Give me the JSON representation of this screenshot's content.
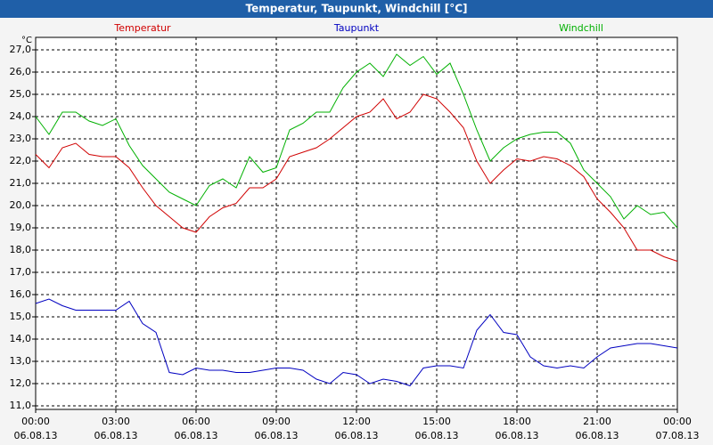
{
  "chart_data": {
    "type": "line",
    "title": "Temperatur, Taupunkt, Windchill [°C]",
    "y_label": "°C",
    "x": [
      0,
      0.5,
      1,
      1.5,
      2,
      2.5,
      3,
      3.5,
      4,
      4.5,
      5,
      5.5,
      6,
      6.5,
      7,
      7.5,
      8,
      8.5,
      9,
      9.5,
      10,
      10.5,
      11,
      11.5,
      12,
      12.5,
      13,
      13.5,
      14,
      14.5,
      15,
      15.5,
      16,
      16.5,
      17,
      17.5,
      18,
      18.5,
      19,
      19.5,
      20,
      20.5,
      21,
      21.5,
      22,
      22.5,
      23,
      23.5,
      24
    ],
    "series": [
      {
        "name": "Temperatur",
        "color": "#d00000",
        "values": [
          22.3,
          21.7,
          22.6,
          22.8,
          22.3,
          22.2,
          22.2,
          21.7,
          20.8,
          20.0,
          19.5,
          19.0,
          18.8,
          19.5,
          19.9,
          20.1,
          20.8,
          20.8,
          21.2,
          22.2,
          22.4,
          22.6,
          23.0,
          23.5,
          24.0,
          24.2,
          24.8,
          23.9,
          24.2,
          25.0,
          24.8,
          24.2,
          23.5,
          22.0,
          21.0,
          21.6,
          22.1,
          22.0,
          22.2,
          22.1,
          21.8,
          21.3,
          20.3,
          19.7,
          19.0,
          18.0,
          18.0,
          17.7,
          17.5
        ]
      },
      {
        "name": "Taupunkt",
        "color": "#0000c0",
        "values": [
          15.6,
          15.8,
          15.5,
          15.3,
          15.3,
          15.3,
          15.3,
          15.7,
          14.7,
          14.3,
          12.5,
          12.4,
          12.7,
          12.6,
          12.6,
          12.5,
          12.5,
          12.6,
          12.7,
          12.7,
          12.6,
          12.2,
          12.0,
          12.5,
          12.4,
          12.0,
          12.2,
          12.1,
          11.9,
          12.7,
          12.8,
          12.8,
          12.7,
          14.4,
          15.1,
          14.3,
          14.2,
          13.2,
          12.8,
          12.7,
          12.8,
          12.7,
          13.2,
          13.6,
          13.7,
          13.8,
          13.8,
          13.7,
          13.6
        ]
      },
      {
        "name": "Windchill",
        "color": "#00b000",
        "values": [
          24.0,
          23.2,
          24.2,
          24.2,
          23.8,
          23.6,
          23.9,
          22.7,
          21.8,
          21.2,
          20.6,
          20.3,
          20.0,
          20.9,
          21.2,
          20.8,
          22.2,
          21.5,
          21.7,
          23.4,
          23.7,
          24.2,
          24.2,
          25.3,
          26.0,
          26.4,
          25.8,
          26.8,
          26.3,
          26.7,
          25.9,
          26.4,
          25.0,
          23.4,
          22.0,
          22.6,
          23.0,
          23.2,
          23.3,
          23.3,
          22.8,
          21.6,
          21.0,
          20.4,
          19.4,
          20.0,
          19.6,
          19.7,
          19.0
        ]
      }
    ],
    "xlim": [
      0,
      24
    ],
    "xticks": [
      {
        "value": 0,
        "label": "00:00"
      },
      {
        "value": 3,
        "label": "03:00"
      },
      {
        "value": 6,
        "label": "06:00"
      },
      {
        "value": 9,
        "label": "09:00"
      },
      {
        "value": 12,
        "label": "12:00"
      },
      {
        "value": 15,
        "label": "15:00"
      },
      {
        "value": 18,
        "label": "18:00"
      },
      {
        "value": 21,
        "label": "21:00"
      },
      {
        "value": 24,
        "label": "00:00"
      }
    ],
    "xtick_dates": [
      "06.08.13",
      "06.08.13",
      "06.08.13",
      "06.08.13",
      "06.08.13",
      "06.08.13",
      "06.08.13",
      "06.08.13",
      "07.08.13"
    ],
    "ylim": [
      10.84,
      27.56
    ],
    "yticks": [
      {
        "value": 11,
        "label": "11,0"
      },
      {
        "value": 12,
        "label": "12,0"
      },
      {
        "value": 13,
        "label": "13,0"
      },
      {
        "value": 14,
        "label": "14,0"
      },
      {
        "value": 15,
        "label": "15,0"
      },
      {
        "value": 16,
        "label": "16,0"
      },
      {
        "value": 17,
        "label": "17,0"
      },
      {
        "value": 18,
        "label": "18,0"
      },
      {
        "value": 19,
        "label": "19,0"
      },
      {
        "value": 20,
        "label": "20,0"
      },
      {
        "value": 21,
        "label": "21,0"
      },
      {
        "value": 22,
        "label": "22,0"
      },
      {
        "value": 23,
        "label": "23,0"
      },
      {
        "value": 24,
        "label": "24,0"
      },
      {
        "value": 25,
        "label": "25,0"
      },
      {
        "value": 26,
        "label": "26,0"
      },
      {
        "value": 27,
        "label": "27,0"
      }
    ],
    "grid": true
  }
}
